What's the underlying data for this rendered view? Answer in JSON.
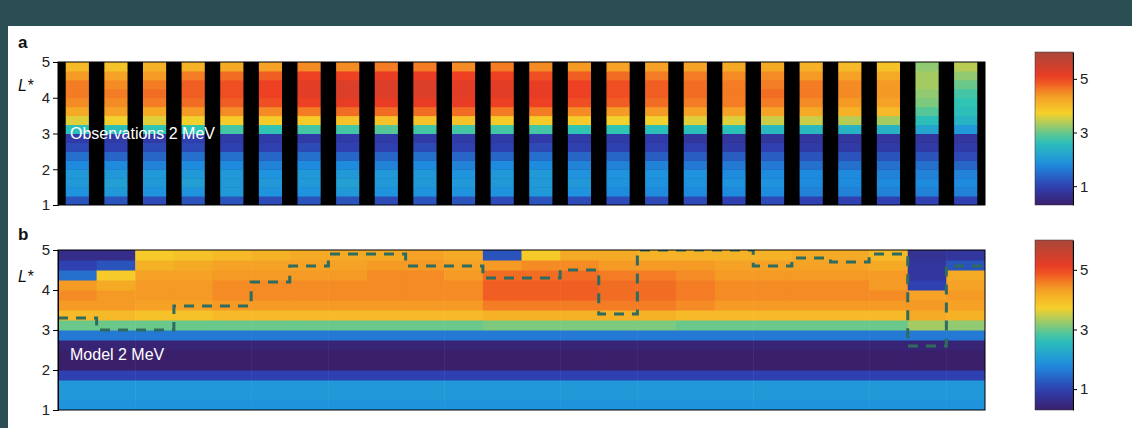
{
  "chart_data": [
    {
      "type": "heatmap",
      "panel": "a",
      "title": "Observations 2 MeV",
      "y_label": "L*",
      "xlim": [
        0,
        24
      ],
      "ylim": [
        1,
        5
      ],
      "yticks": [
        1,
        2,
        3,
        4,
        5
      ],
      "tick_labels": "y",
      "x_bins": [
        0,
        1,
        2,
        3,
        4,
        5,
        6,
        7,
        8,
        9,
        10,
        11,
        12,
        13,
        14,
        15,
        16,
        17,
        18,
        19,
        20,
        21,
        22,
        23,
        24
      ],
      "y_bins": [
        1,
        1.25,
        1.5,
        1.75,
        2,
        2.25,
        2.5,
        2.75,
        3,
        3.25,
        3.5,
        3.75,
        4,
        4.25,
        4.5,
        4.75,
        5
      ],
      "cells": [
        [
          1.2,
          1.9,
          2.0,
          2.0,
          1.8,
          1.5,
          1.1,
          0.9,
          2.6,
          3.6,
          4.2,
          4.5,
          4.6,
          4.6,
          4.4,
          4.0
        ],
        [
          1.2,
          2.0,
          2.1,
          2.0,
          1.8,
          1.4,
          1.0,
          0.9,
          2.6,
          3.7,
          4.3,
          4.5,
          4.6,
          4.5,
          4.3,
          3.9
        ],
        [
          1.1,
          1.9,
          2.0,
          2.0,
          1.7,
          1.4,
          1.1,
          0.9,
          2.7,
          3.6,
          4.2,
          4.6,
          4.7,
          4.6,
          4.4,
          4.1
        ],
        [
          1.2,
          1.9,
          2.1,
          2.0,
          1.8,
          1.5,
          1.1,
          1.0,
          2.7,
          3.7,
          4.4,
          4.7,
          4.8,
          4.8,
          4.6,
          4.1
        ],
        [
          1.2,
          2.0,
          2.0,
          2.0,
          1.8,
          1.5,
          1.0,
          0.9,
          2.8,
          3.8,
          4.5,
          4.8,
          4.9,
          4.9,
          4.7,
          4.2
        ],
        [
          1.1,
          1.9,
          2.0,
          1.9,
          1.7,
          1.4,
          1.0,
          0.9,
          2.7,
          3.8,
          4.5,
          4.9,
          5.0,
          5.0,
          4.8,
          4.3
        ],
        [
          1.2,
          1.9,
          2.0,
          2.0,
          1.8,
          1.5,
          1.1,
          0.9,
          2.8,
          3.8,
          4.6,
          5.0,
          5.2,
          5.2,
          5.0,
          4.5
        ],
        [
          1.2,
          2.0,
          2.1,
          2.0,
          1.8,
          1.4,
          1.0,
          0.9,
          2.8,
          3.9,
          4.7,
          5.1,
          5.3,
          5.3,
          5.0,
          4.5
        ],
        [
          1.1,
          1.9,
          2.0,
          2.0,
          1.7,
          1.4,
          1.0,
          0.9,
          2.9,
          3.9,
          4.7,
          5.1,
          5.3,
          5.3,
          5.1,
          4.6
        ],
        [
          1.2,
          1.9,
          2.0,
          2.0,
          1.8,
          1.5,
          1.1,
          0.9,
          2.8,
          3.9,
          4.7,
          5.1,
          5.3,
          5.3,
          5.1,
          4.6
        ],
        [
          1.2,
          1.9,
          2.0,
          1.9,
          1.7,
          1.4,
          1.0,
          0.9,
          2.8,
          3.9,
          4.7,
          5.1,
          5.2,
          5.2,
          5.0,
          4.5
        ],
        [
          1.1,
          1.9,
          2.0,
          2.0,
          1.8,
          1.4,
          1.0,
          0.9,
          2.8,
          3.8,
          4.6,
          5.0,
          5.2,
          5.2,
          5.0,
          4.6
        ],
        [
          1.2,
          2.0,
          2.0,
          2.0,
          1.8,
          1.5,
          1.1,
          0.9,
          2.8,
          3.8,
          4.6,
          5.0,
          5.1,
          5.1,
          4.9,
          4.5
        ],
        [
          1.1,
          1.9,
          2.0,
          1.9,
          1.7,
          1.4,
          1.0,
          0.9,
          2.7,
          3.8,
          4.5,
          4.9,
          5.0,
          5.0,
          4.8,
          4.4
        ],
        [
          1.1,
          1.8,
          1.9,
          1.9,
          1.7,
          1.4,
          1.0,
          0.9,
          2.7,
          3.7,
          4.4,
          4.8,
          4.9,
          4.9,
          4.7,
          4.3
        ],
        [
          1.1,
          1.8,
          1.9,
          1.9,
          1.7,
          1.3,
          1.0,
          0.9,
          2.6,
          3.7,
          4.4,
          4.7,
          4.8,
          4.8,
          4.6,
          4.3
        ],
        [
          1.1,
          1.8,
          1.9,
          1.9,
          1.6,
          1.3,
          1.0,
          0.8,
          2.6,
          3.6,
          4.3,
          4.6,
          4.7,
          4.7,
          4.6,
          4.3
        ],
        [
          1.0,
          1.8,
          1.9,
          1.8,
          1.6,
          1.3,
          0.9,
          0.8,
          2.6,
          3.6,
          4.3,
          4.6,
          4.6,
          4.6,
          4.5,
          4.2
        ],
        [
          1.1,
          1.8,
          1.9,
          1.8,
          1.6,
          1.3,
          1.0,
          0.8,
          2.5,
          3.5,
          4.3,
          4.6,
          4.7,
          4.6,
          4.5,
          4.2
        ],
        [
          1.0,
          1.7,
          1.8,
          1.8,
          1.5,
          1.2,
          0.9,
          0.8,
          2.5,
          3.5,
          4.2,
          4.5,
          4.6,
          4.6,
          4.4,
          4.1
        ],
        [
          1.0,
          1.7,
          1.8,
          1.8,
          1.5,
          1.2,
          0.9,
          0.8,
          2.4,
          3.4,
          4.1,
          4.4,
          4.5,
          4.5,
          4.3,
          4.0
        ],
        [
          1.0,
          1.7,
          1.8,
          1.7,
          1.5,
          1.2,
          0.9,
          0.8,
          2.4,
          3.3,
          4.0,
          4.3,
          4.4,
          4.4,
          4.2,
          3.9
        ],
        [
          1.0,
          1.7,
          1.8,
          1.7,
          1.5,
          1.2,
          0.9,
          0.8,
          2.2,
          2.6,
          2.9,
          3.1,
          3.2,
          3.3,
          3.3,
          3.2
        ],
        [
          1.0,
          1.7,
          1.8,
          1.7,
          1.4,
          1.1,
          0.9,
          0.8,
          2.0,
          2.4,
          2.6,
          2.7,
          2.8,
          3.0,
          3.2,
          3.4
        ]
      ],
      "colorbar": {
        "range": [
          0.3,
          6
        ],
        "ticks": [
          1,
          3,
          5
        ]
      }
    },
    {
      "type": "heatmap",
      "panel": "b",
      "title": "Model 2 MeV",
      "y_label": "L*",
      "xlim": [
        0,
        24
      ],
      "ylim": [
        1,
        5
      ],
      "yticks": [
        1,
        2,
        3,
        4,
        5
      ],
      "tick_labels": "y",
      "x_bins": [
        0,
        1,
        2,
        3,
        4,
        5,
        6,
        7,
        8,
        9,
        10,
        11,
        12,
        13,
        14,
        15,
        16,
        17,
        18,
        19,
        20,
        21,
        22,
        23,
        24
      ],
      "y_bins": [
        1,
        1.25,
        1.5,
        1.75,
        2,
        2.25,
        2.5,
        2.75,
        3,
        3.25,
        3.5,
        3.75,
        4,
        4.25,
        4.5,
        4.75,
        5
      ],
      "cells": [
        [
          1.9,
          2.0,
          2.0,
          1.0,
          0.3,
          0.3,
          0.4,
          1.6,
          3.0,
          4.0,
          4.4,
          4.5,
          4.4,
          1.5,
          1.0,
          0.6
        ],
        [
          1.9,
          2.0,
          2.0,
          1.0,
          0.3,
          0.3,
          0.4,
          1.6,
          3.0,
          4.0,
          4.4,
          4.4,
          4.2,
          3.8,
          1.2,
          0.6
        ],
        [
          1.9,
          2.0,
          2.0,
          1.0,
          0.3,
          0.3,
          0.4,
          1.6,
          3.0,
          3.9,
          4.3,
          4.4,
          4.4,
          4.3,
          4.1,
          3.8
        ],
        [
          1.9,
          2.0,
          2.0,
          1.0,
          0.3,
          0.3,
          0.4,
          1.6,
          3.0,
          3.9,
          4.3,
          4.4,
          4.4,
          4.3,
          4.2,
          3.9
        ],
        [
          1.9,
          2.0,
          2.0,
          1.0,
          0.3,
          0.3,
          0.4,
          1.6,
          3.0,
          4.0,
          4.4,
          4.5,
          4.5,
          4.4,
          4.3,
          4.0
        ],
        [
          1.9,
          2.0,
          2.0,
          1.0,
          0.3,
          0.3,
          0.4,
          1.6,
          3.0,
          4.0,
          4.4,
          4.5,
          4.5,
          4.4,
          4.3,
          4.1
        ],
        [
          1.9,
          2.0,
          2.0,
          1.0,
          0.3,
          0.3,
          0.4,
          1.6,
          3.0,
          4.0,
          4.4,
          4.5,
          4.5,
          4.4,
          4.3,
          4.2
        ],
        [
          1.9,
          2.0,
          2.0,
          1.0,
          0.3,
          0.3,
          0.4,
          1.6,
          3.0,
          4.0,
          4.4,
          4.5,
          4.5,
          4.4,
          4.3,
          4.2
        ],
        [
          1.9,
          2.0,
          2.0,
          1.0,
          0.3,
          0.3,
          0.4,
          1.6,
          3.0,
          4.0,
          4.4,
          4.5,
          4.5,
          4.5,
          4.4,
          4.2
        ],
        [
          1.9,
          2.0,
          2.0,
          1.0,
          0.3,
          0.3,
          0.4,
          1.6,
          3.0,
          4.0,
          4.4,
          4.5,
          4.5,
          4.5,
          4.4,
          4.3
        ],
        [
          1.9,
          2.0,
          2.0,
          1.0,
          0.3,
          0.3,
          0.4,
          1.6,
          3.0,
          4.0,
          4.4,
          4.5,
          4.5,
          4.4,
          4.3,
          4.2
        ],
        [
          1.9,
          2.0,
          2.0,
          1.0,
          0.3,
          0.3,
          0.4,
          1.6,
          3.1,
          4.1,
          4.6,
          4.8,
          4.8,
          4.7,
          4.4,
          1.2
        ],
        [
          1.9,
          2.0,
          2.0,
          1.0,
          0.3,
          0.3,
          0.4,
          1.6,
          3.1,
          4.1,
          4.6,
          4.8,
          4.8,
          4.7,
          4.5,
          3.8
        ],
        [
          1.9,
          2.0,
          2.0,
          1.0,
          0.3,
          0.3,
          0.4,
          1.6,
          3.1,
          4.1,
          4.6,
          4.8,
          4.8,
          4.7,
          4.5,
          4.2
        ],
        [
          1.9,
          2.0,
          2.0,
          1.0,
          0.3,
          0.3,
          0.4,
          1.6,
          3.1,
          4.1,
          4.6,
          4.7,
          4.7,
          4.6,
          4.4,
          4.2
        ],
        [
          1.9,
          2.0,
          2.0,
          1.0,
          0.3,
          0.3,
          0.4,
          1.6,
          3.1,
          4.1,
          4.6,
          4.7,
          4.7,
          4.6,
          4.4,
          4.1
        ],
        [
          1.9,
          2.0,
          2.0,
          1.0,
          0.3,
          0.3,
          0.4,
          1.6,
          3.0,
          4.0,
          4.5,
          4.6,
          4.6,
          4.5,
          4.4,
          4.1
        ],
        [
          1.9,
          2.0,
          2.0,
          1.0,
          0.3,
          0.3,
          0.4,
          1.6,
          3.0,
          4.0,
          4.4,
          4.5,
          4.5,
          4.4,
          4.3,
          4.1
        ],
        [
          1.9,
          2.0,
          2.0,
          1.0,
          0.3,
          0.3,
          0.4,
          1.6,
          3.0,
          4.0,
          4.4,
          4.5,
          4.5,
          4.4,
          4.3,
          4.1
        ],
        [
          1.9,
          2.0,
          2.0,
          1.0,
          0.3,
          0.3,
          0.4,
          1.6,
          3.0,
          4.0,
          4.4,
          4.5,
          4.5,
          4.4,
          4.3,
          4.2
        ],
        [
          1.9,
          2.0,
          2.0,
          1.0,
          0.3,
          0.3,
          0.4,
          1.6,
          3.0,
          4.0,
          4.4,
          4.5,
          4.5,
          4.4,
          4.3,
          4.2
        ],
        [
          1.9,
          2.0,
          2.0,
          1.0,
          0.3,
          0.3,
          0.4,
          1.6,
          3.0,
          4.0,
          4.4,
          4.5,
          4.4,
          4.4,
          4.2,
          4.0
        ],
        [
          1.9,
          2.0,
          2.0,
          1.0,
          0.3,
          0.3,
          0.4,
          1.6,
          3.3,
          4.2,
          4.4,
          4.3,
          1.0,
          0.8,
          0.8,
          0.7
        ],
        [
          1.9,
          2.0,
          2.0,
          1.0,
          0.3,
          0.3,
          0.4,
          1.6,
          3.2,
          4.1,
          4.3,
          4.4,
          4.3,
          4.2,
          1.2,
          0.8
        ]
      ],
      "line": {
        "x": [
          0,
          1,
          2,
          3,
          4,
          5,
          6,
          7,
          8,
          9,
          10,
          11,
          12,
          13,
          14,
          15,
          16,
          17,
          18,
          19,
          20,
          21,
          22,
          23,
          24
        ],
        "values": [
          3.3,
          3.0,
          3.0,
          3.6,
          3.6,
          4.2,
          4.6,
          4.9,
          4.9,
          4.6,
          4.6,
          4.3,
          4.3,
          4.5,
          3.4,
          5.0,
          5.0,
          5.0,
          4.6,
          4.8,
          4.7,
          4.9,
          2.6,
          4.6,
          4.6
        ],
        "line_style": "dashed",
        "color": "#2f6b5e"
      },
      "colorbar": {
        "range": [
          0.3,
          6
        ],
        "ticks": [
          1,
          3,
          5
        ]
      }
    }
  ]
}
